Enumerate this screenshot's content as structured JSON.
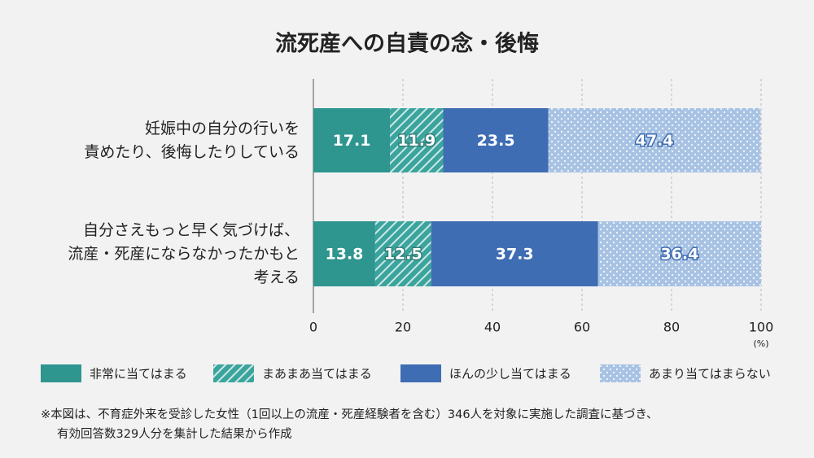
{
  "chart_data": {
    "type": "stacked-bar-horizontal",
    "title": "流死産への自責の念・後悔",
    "categories": [
      "妊娠中の自分の行いを\n責めたり、後悔したりしている",
      "自分さえもっと早く気づけば、\n流産・死産にならなかったかもと\n考える"
    ],
    "series": [
      {
        "name": "非常に当てはまる",
        "color": "#2e958f",
        "pattern": "solid",
        "values": [
          17.1,
          13.8
        ]
      },
      {
        "name": "まあまあ当てはまる",
        "color": "#3aa49d",
        "pattern": "hatch",
        "values": [
          11.9,
          12.5
        ]
      },
      {
        "name": "ほんの少し当てはまる",
        "color": "#3f6db4",
        "pattern": "solid",
        "values": [
          23.5,
          37.3
        ]
      },
      {
        "name": "あまり当てはまらない",
        "color": "#a7c2e3",
        "pattern": "dots",
        "values": [
          47.4,
          36.4
        ]
      }
    ],
    "xlim": [
      0,
      100
    ],
    "xticks": [
      0,
      20,
      40,
      60,
      80,
      100
    ],
    "x_unit": "(%)",
    "grid": true,
    "note": [
      "※本図は、不育症外来を受診した女性（1回以上の流産・死産経験者を含む）346人を対象に実施した調査に基づき、",
      "有効回答数329人分を集計した結果から作成"
    ]
  }
}
